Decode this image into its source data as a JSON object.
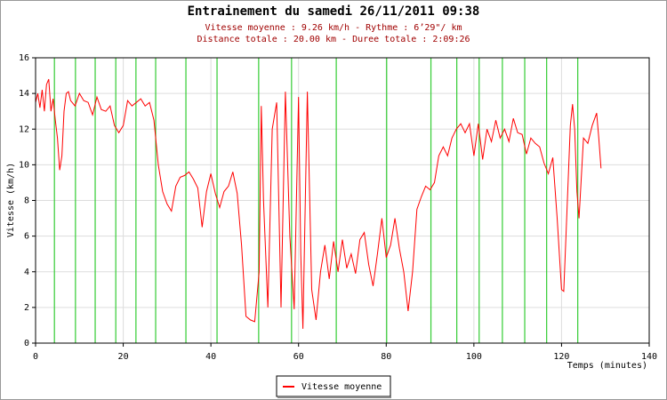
{
  "chart_data": {
    "type": "line",
    "title": "Entrainement du samedi 26/11/2011 09:38",
    "subtitle": [
      "Vitesse moyenne : 9.26 km/h - Rythme : 6’29\"/ km",
      "Distance totale : 20.00 km - Duree totale : 2:09:26"
    ],
    "x_label": "Temps (minutes)",
    "y_label": "Vitesse (km/h)",
    "xlim": [
      0,
      140
    ],
    "xticks": [
      0,
      20,
      40,
      60,
      80,
      100,
      120,
      140
    ],
    "ylim": [
      0,
      16
    ],
    "yticks": [
      0,
      2,
      4,
      6,
      8,
      10,
      12,
      14,
      16
    ],
    "grid": true,
    "markers": {
      "color": "#33cc33",
      "x": [
        4.3,
        9.1,
        13.6,
        18.3,
        22.9,
        27.4,
        34.3,
        41.4,
        50.9,
        58.4,
        68.6,
        80.1,
        90.2,
        96.1,
        101.2,
        106.5,
        111.6,
        116.6,
        123.7
      ]
    },
    "legend": "bottom",
    "series": [
      {
        "name": "Vitesse moyenne",
        "color": "#ff0000",
        "x": [
          0,
          0.5,
          1,
          1.5,
          2,
          2.5,
          3,
          3.5,
          4,
          4.5,
          5,
          5.5,
          6,
          6.5,
          7,
          7.5,
          8,
          9,
          10,
          11,
          12,
          13,
          14,
          15,
          16,
          17,
          18,
          19,
          20,
          21,
          22,
          23,
          24,
          25,
          26,
          27,
          28,
          29,
          30,
          31,
          32,
          33,
          34,
          35,
          36,
          37,
          38,
          39,
          40,
          41,
          42,
          43,
          44,
          45,
          46,
          47,
          48,
          49,
          50,
          51,
          51.5,
          52,
          53,
          54,
          55,
          56,
          57,
          58,
          59,
          60,
          60.5,
          61,
          62,
          63,
          64,
          65,
          66,
          67,
          68,
          69,
          70,
          71,
          72,
          73,
          74,
          75,
          76,
          77,
          78,
          79,
          80,
          81,
          82,
          83,
          84,
          85,
          86,
          87,
          88,
          89,
          90,
          91,
          92,
          93,
          94,
          95,
          96,
          97,
          98,
          99,
          100,
          101,
          102,
          103,
          104,
          105,
          106,
          107,
          108,
          109,
          110,
          111,
          112,
          113,
          114,
          115,
          116,
          117,
          118,
          119,
          120,
          120.5,
          121,
          122,
          122.5,
          123,
          123.5,
          124,
          125,
          126,
          127,
          128,
          128.5,
          129
        ],
        "values": [
          13.5,
          14,
          13.2,
          14.2,
          13,
          14.5,
          14.8,
          13,
          13.7,
          12.5,
          11.5,
          9.7,
          10.5,
          13,
          14,
          14.1,
          13.6,
          13.3,
          14,
          13.6,
          13.5,
          12.8,
          13.8,
          13.1,
          13,
          13.3,
          12.2,
          11.8,
          12.2,
          13.6,
          13.3,
          13.5,
          13.7,
          13.3,
          13.5,
          12.5,
          10,
          8.5,
          7.8,
          7.4,
          8.8,
          9.3,
          9.4,
          9.6,
          9.2,
          8.7,
          6.5,
          8.5,
          9.5,
          8.4,
          7.6,
          8.5,
          8.8,
          9.6,
          8.4,
          5.5,
          1.5,
          1.3,
          1.2,
          4,
          13.3,
          8,
          2,
          12,
          13.5,
          2,
          14.1,
          6,
          1.9,
          13.8,
          5,
          0.8,
          14.1,
          3,
          1.3,
          4,
          5.5,
          3.6,
          5.7,
          4,
          5.8,
          4.2,
          5,
          3.9,
          5.8,
          6.2,
          4.4,
          3.2,
          5,
          7,
          4.8,
          5.5,
          7,
          5.3,
          4,
          1.8,
          4,
          7.5,
          8.2,
          8.8,
          8.6,
          9,
          10.5,
          11,
          10.5,
          11.5,
          12,
          12.3,
          11.8,
          12.3,
          10.5,
          12.3,
          10.3,
          12,
          11.3,
          12.5,
          11.5,
          12,
          11.3,
          12.6,
          11.8,
          11.7,
          10.6,
          11.5,
          11.2,
          11,
          10.1,
          9.5,
          10.4,
          7,
          3,
          2.9,
          6,
          12.2,
          13.4,
          12,
          8.5,
          7,
          11.5,
          11.2,
          12.2,
          12.9,
          11.5,
          9.8
        ]
      }
    ]
  }
}
